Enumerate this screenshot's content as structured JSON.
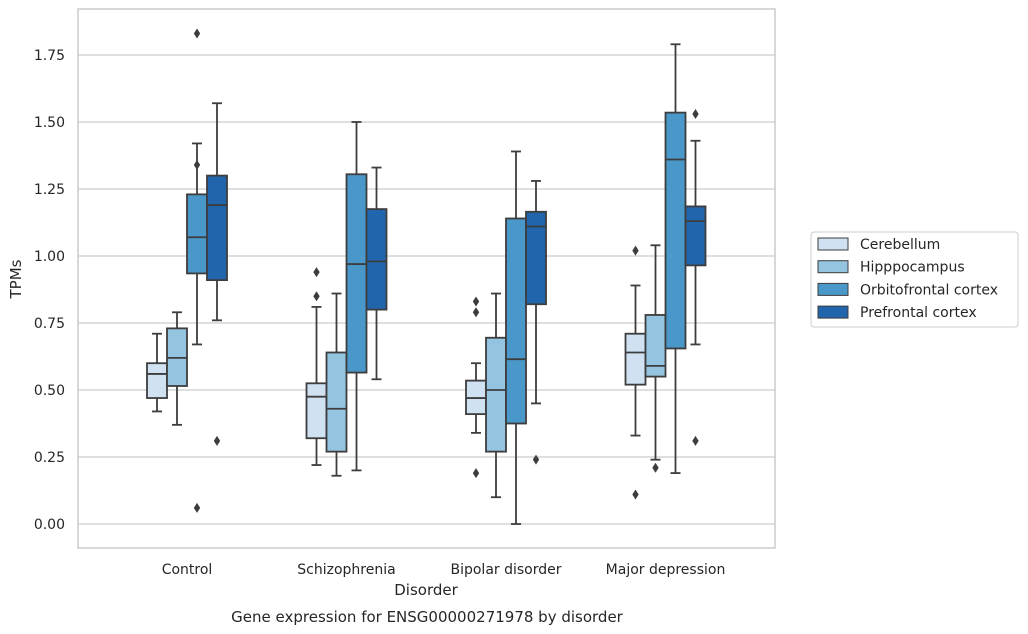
{
  "chart_data": {
    "type": "box",
    "title": "",
    "caption": "Gene expression for ENSG00000271978 by disorder",
    "xlabel": "Disorder",
    "ylabel": "TPMs",
    "ylim": [
      -0.09,
      1.92
    ],
    "yticks": [
      "0.00",
      "0.25",
      "0.50",
      "0.75",
      "1.00",
      "1.25",
      "1.50",
      "1.75"
    ],
    "ytick_values": [
      0,
      0.25,
      0.5,
      0.75,
      1.0,
      1.25,
      1.5,
      1.75
    ],
    "grid": true,
    "legend_position": "center-right",
    "categories": [
      "Control",
      "Schizophrenia",
      "Bipolar disorder",
      "Major depression"
    ],
    "series": [
      {
        "name": "Cerebellum",
        "color": "#d0e1f2",
        "boxes": [
          {
            "whisker_low": 0.42,
            "q1": 0.47,
            "median": 0.56,
            "q3": 0.6,
            "whisker_high": 0.71,
            "outliers": []
          },
          {
            "whisker_low": 0.22,
            "q1": 0.32,
            "median": 0.475,
            "q3": 0.525,
            "whisker_high": 0.81,
            "outliers": [
              0.85,
              0.94
            ]
          },
          {
            "whisker_low": 0.34,
            "q1": 0.41,
            "median": 0.47,
            "q3": 0.535,
            "whisker_high": 0.6,
            "outliers": [
              0.19,
              0.79,
              0.83
            ]
          },
          {
            "whisker_low": 0.33,
            "q1": 0.52,
            "median": 0.64,
            "q3": 0.71,
            "whisker_high": 0.89,
            "outliers": [
              0.11,
              1.02
            ]
          }
        ]
      },
      {
        "name": "Hipppocampus",
        "color": "#94c4df",
        "boxes": [
          {
            "whisker_low": 0.37,
            "q1": 0.515,
            "median": 0.62,
            "q3": 0.73,
            "whisker_high": 0.79,
            "outliers": []
          },
          {
            "whisker_low": 0.18,
            "q1": 0.27,
            "median": 0.43,
            "q3": 0.64,
            "whisker_high": 0.86,
            "outliers": []
          },
          {
            "whisker_low": 0.1,
            "q1": 0.27,
            "median": 0.5,
            "q3": 0.695,
            "whisker_high": 0.86,
            "outliers": []
          },
          {
            "whisker_low": 0.24,
            "q1": 0.55,
            "median": 0.59,
            "q3": 0.78,
            "whisker_high": 1.04,
            "outliers": [
              0.21
            ]
          }
        ]
      },
      {
        "name": "Orbitofrontal cortex",
        "color": "#4a98c9",
        "boxes": [
          {
            "whisker_low": 0.67,
            "q1": 0.935,
            "median": 1.07,
            "q3": 1.23,
            "whisker_high": 1.42,
            "outliers": [
              1.34,
              1.83,
              0.06
            ]
          },
          {
            "whisker_low": 0.2,
            "q1": 0.565,
            "median": 0.97,
            "q3": 1.305,
            "whisker_high": 1.5,
            "outliers": []
          },
          {
            "whisker_low": 0.0,
            "q1": 0.375,
            "median": 0.615,
            "q3": 1.14,
            "whisker_high": 1.39,
            "outliers": []
          },
          {
            "whisker_low": 0.19,
            "q1": 0.655,
            "median": 1.36,
            "q3": 1.535,
            "whisker_high": 1.79,
            "outliers": []
          }
        ]
      },
      {
        "name": "Prefrontal cortex",
        "color": "#2166ac",
        "boxes": [
          {
            "whisker_low": 0.76,
            "q1": 0.91,
            "median": 1.19,
            "q3": 1.3,
            "whisker_high": 1.57,
            "outliers": [
              0.31
            ]
          },
          {
            "whisker_low": 0.54,
            "q1": 0.8,
            "median": 0.98,
            "q3": 1.175,
            "whisker_high": 1.33,
            "outliers": []
          },
          {
            "whisker_low": 0.45,
            "q1": 0.82,
            "median": 1.11,
            "q3": 1.165,
            "whisker_high": 1.28,
            "outliers": [
              0.24
            ]
          },
          {
            "whisker_low": 0.67,
            "q1": 0.965,
            "median": 1.13,
            "q3": 1.185,
            "whisker_high": 1.43,
            "outliers": [
              0.31,
              1.53
            ]
          }
        ]
      }
    ]
  }
}
